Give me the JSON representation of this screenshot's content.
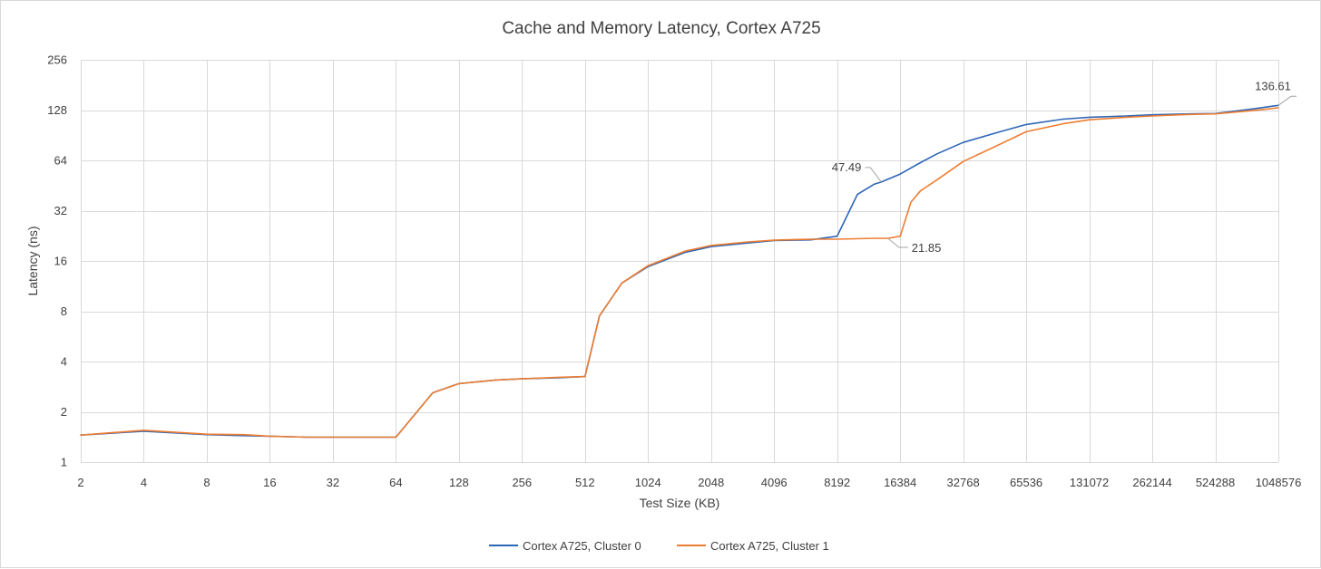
{
  "chart_data": {
    "type": "line",
    "title": "Cache and Memory Latency, Cortex A725",
    "xlabel": "Test Size (KB)",
    "ylabel": "Latency (ns)",
    "x_scale": "log2",
    "y_scale": "log2",
    "xlim": [
      2,
      1048576
    ],
    "ylim": [
      1,
      256
    ],
    "x_ticks": [
      2,
      4,
      8,
      16,
      32,
      64,
      128,
      256,
      512,
      1024,
      2048,
      4096,
      8192,
      16384,
      32768,
      65536,
      131072,
      262144,
      524288,
      1048576
    ],
    "y_ticks": [
      1,
      2,
      4,
      8,
      16,
      32,
      64,
      128,
      256
    ],
    "grid": true,
    "legend_position": "bottom",
    "series": [
      {
        "name": "Cortex A725, Cluster 0",
        "color": "#2e66b6",
        "points": [
          [
            2,
            1.45
          ],
          [
            4,
            1.53
          ],
          [
            8,
            1.46
          ],
          [
            12,
            1.44
          ],
          [
            16,
            1.43
          ],
          [
            24,
            1.41
          ],
          [
            32,
            1.41
          ],
          [
            48,
            1.41
          ],
          [
            64,
            1.41
          ],
          [
            96,
            2.6
          ],
          [
            128,
            2.95
          ],
          [
            192,
            3.1
          ],
          [
            256,
            3.15
          ],
          [
            384,
            3.2
          ],
          [
            512,
            3.25
          ],
          [
            600,
            7.5
          ],
          [
            768,
            11.8
          ],
          [
            1024,
            14.8
          ],
          [
            1536,
            18.0
          ],
          [
            2048,
            19.5
          ],
          [
            3072,
            20.5
          ],
          [
            4096,
            21.2
          ],
          [
            6144,
            21.4
          ],
          [
            8192,
            22.5
          ],
          [
            10240,
            40.0
          ],
          [
            12288,
            46.0
          ],
          [
            13312,
            47.49
          ],
          [
            16384,
            53.0
          ],
          [
            20480,
            62.0
          ],
          [
            24576,
            70.0
          ],
          [
            32768,
            82.0
          ],
          [
            49152,
            95.0
          ],
          [
            65536,
            105.0
          ],
          [
            98304,
            113.0
          ],
          [
            131072,
            116.0
          ],
          [
            196608,
            118.0
          ],
          [
            262144,
            120.0
          ],
          [
            393216,
            121.5
          ],
          [
            524288,
            122.0
          ],
          [
            786432,
            130.0
          ],
          [
            1048576,
            136.61
          ]
        ]
      },
      {
        "name": "Cortex A725, Cluster 1",
        "color": "#ed7d31",
        "points": [
          [
            2,
            1.45
          ],
          [
            4,
            1.55
          ],
          [
            8,
            1.47
          ],
          [
            12,
            1.46
          ],
          [
            16,
            1.43
          ],
          [
            24,
            1.41
          ],
          [
            32,
            1.41
          ],
          [
            48,
            1.41
          ],
          [
            64,
            1.41
          ],
          [
            96,
            2.6
          ],
          [
            128,
            2.95
          ],
          [
            192,
            3.1
          ],
          [
            256,
            3.15
          ],
          [
            384,
            3.22
          ],
          [
            512,
            3.25
          ],
          [
            600,
            7.5
          ],
          [
            768,
            11.8
          ],
          [
            1024,
            15.0
          ],
          [
            1536,
            18.3
          ],
          [
            2048,
            19.8
          ],
          [
            3072,
            20.8
          ],
          [
            4096,
            21.3
          ],
          [
            6144,
            21.6
          ],
          [
            8192,
            21.6
          ],
          [
            12288,
            21.85
          ],
          [
            14336,
            21.85
          ],
          [
            16384,
            22.5
          ],
          [
            18432,
            36.0
          ],
          [
            20480,
            42.0
          ],
          [
            24576,
            49.0
          ],
          [
            32768,
            63.0
          ],
          [
            49152,
            80.0
          ],
          [
            65536,
            95.0
          ],
          [
            98304,
            106.0
          ],
          [
            131072,
            112.0
          ],
          [
            196608,
            116.0
          ],
          [
            262144,
            118.0
          ],
          [
            393216,
            120.5
          ],
          [
            524288,
            121.5
          ],
          [
            786432,
            127.0
          ],
          [
            1048576,
            132.0
          ]
        ]
      }
    ],
    "annotations": [
      {
        "series": 0,
        "x": 13312,
        "y": 47.49,
        "text": "47.49",
        "side": "left"
      },
      {
        "series": 1,
        "x": 14336,
        "y": 21.85,
        "text": "21.85",
        "side": "right"
      },
      {
        "series": 0,
        "x": 1048576,
        "y": 136.61,
        "text": "136.61",
        "side": "above"
      }
    ]
  }
}
